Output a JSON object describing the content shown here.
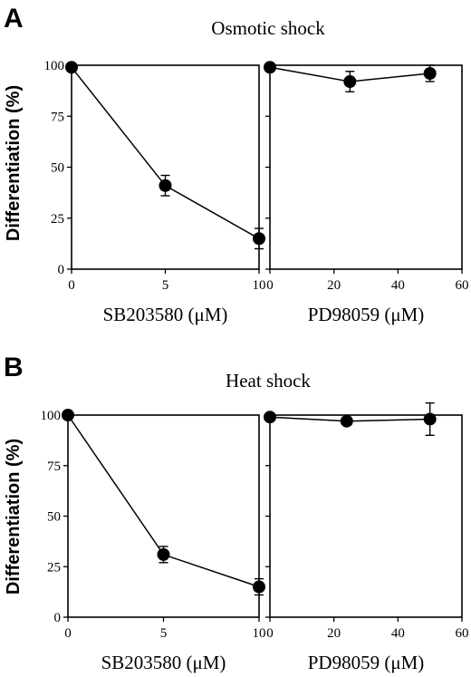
{
  "figure": {
    "panel_A": {
      "letter": "A",
      "title": "Osmotic shock"
    },
    "panel_B": {
      "letter": "B",
      "title": "Heat shock"
    },
    "ylabel": "Differentiation (%)"
  },
  "chart_data": [
    {
      "type": "line",
      "panel": "A",
      "title": "Osmotic shock",
      "xlabel": "SB203580 (μM)",
      "ylabel": "Differentiation (%)",
      "xlim": [
        0,
        10
      ],
      "ylim": [
        0,
        100
      ],
      "xticks": [
        0,
        5,
        10
      ],
      "yticks": [
        0,
        25,
        50,
        75,
        100
      ],
      "grid": false,
      "series": [
        {
          "x": [
            0,
            5,
            10
          ],
          "y": [
            99,
            41,
            15
          ],
          "error": [
            0,
            5,
            5
          ]
        }
      ]
    },
    {
      "type": "line",
      "panel": "A",
      "title": "",
      "xlabel": "PD98059 (μM)",
      "ylabel": "",
      "xlim": [
        0,
        60
      ],
      "ylim": [
        0,
        100
      ],
      "xticks": [
        0,
        20,
        40,
        60
      ],
      "yticks": [
        0,
        25,
        50,
        75,
        100
      ],
      "grid": false,
      "series": [
        {
          "x": [
            0,
            25,
            50
          ],
          "y": [
            99,
            92,
            96
          ],
          "error": [
            0,
            5,
            4
          ]
        }
      ]
    },
    {
      "type": "line",
      "panel": "B",
      "title": "Heat shock",
      "xlabel": "SB203580 (μM)",
      "ylabel": "Differentiation (%)",
      "xlim": [
        0,
        10
      ],
      "ylim": [
        0,
        100
      ],
      "xticks": [
        0,
        5,
        10
      ],
      "yticks": [
        0,
        25,
        50,
        75,
        100
      ],
      "grid": false,
      "series": [
        {
          "x": [
            0,
            5,
            10
          ],
          "y": [
            100,
            31,
            15
          ],
          "error": [
            0,
            4,
            4
          ]
        }
      ]
    },
    {
      "type": "line",
      "panel": "B",
      "title": "",
      "xlabel": "PD98059 (μM)",
      "ylabel": "",
      "xlim": [
        0,
        60
      ],
      "ylim": [
        0,
        100
      ],
      "xticks": [
        0,
        20,
        40,
        60
      ],
      "yticks": [
        0,
        25,
        50,
        75,
        100
      ],
      "grid": false,
      "series": [
        {
          "x": [
            0,
            24,
            50
          ],
          "y": [
            99,
            97,
            98
          ],
          "error": [
            0,
            0,
            8
          ]
        }
      ]
    }
  ]
}
